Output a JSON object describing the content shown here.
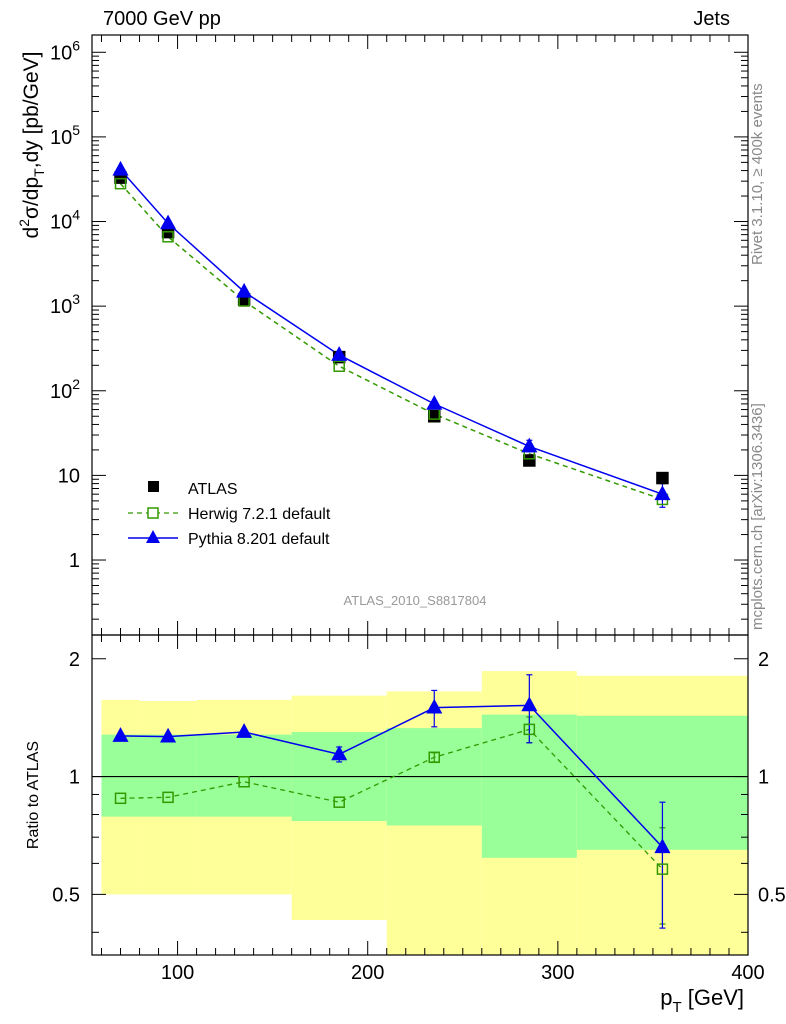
{
  "header": {
    "left": "7000 GeV pp",
    "right": "Jets"
  },
  "side_labels": {
    "rivet": "Rivet 3.1.10, ≥ 400k events",
    "mcplots": "mcplots.cern.ch [arXiv:1306.3436]"
  },
  "analysis_id": "ATLAS_2010_S8817804",
  "colors": {
    "data": "#000000",
    "herwig": "#339900",
    "pythia": "#0000ee",
    "band_outer": "#ffff99",
    "band_inner": "#99ff99"
  },
  "chart_data": [
    {
      "type": "line",
      "panel": "main",
      "ylabel": "d²σ/dp_T,dy [pb/GeV]",
      "yscale": "log",
      "ylim": [
        0.13,
        1600000
      ],
      "xlim": [
        55,
        400
      ],
      "y_tick_labels": [
        "1",
        "10",
        "10²",
        "10³",
        "10⁴",
        "10⁵",
        "10⁶"
      ],
      "legend_position": "lower-left",
      "x": [
        70,
        95,
        135,
        185,
        235,
        285,
        355
      ],
      "series": [
        {
          "name": "ATLAS",
          "values": [
            33000,
            7500,
            1200,
            250,
            50,
            15,
            9.3
          ]
        },
        {
          "name": "Herwig 7.2.1 default",
          "values": [
            28000,
            6600,
            1150,
            195,
            53,
            18,
            5.2
          ]
        },
        {
          "name": "Pythia 8.201 default",
          "values": [
            41000,
            9500,
            1480,
            265,
            70,
            22,
            6.0
          ],
          "yerr_low": [
            0,
            0,
            0,
            0,
            0,
            3,
            1.8
          ],
          "yerr_high": [
            0,
            0,
            0,
            0,
            0,
            4,
            2
          ]
        }
      ]
    },
    {
      "type": "line",
      "panel": "ratio",
      "xlabel": "p_T [GeV]",
      "ylabel": "Ratio to ATLAS",
      "yscale": "log",
      "ylim": [
        0.35,
        2.3
      ],
      "xlim": [
        55,
        400
      ],
      "x_tick_labels": [
        "100",
        "200",
        "300",
        "400"
      ],
      "y_tick_labels": [
        "0.5",
        "1",
        "2"
      ],
      "x": [
        70,
        95,
        135,
        185,
        235,
        285,
        355
      ],
      "bands": {
        "bin_edges": [
          60,
          80,
          110,
          160,
          210,
          260,
          310,
          400
        ],
        "outer_low": [
          0.5,
          0.5,
          0.5,
          0.43,
          0.35,
          0.35,
          0.35
        ],
        "outer_high": [
          1.57,
          1.56,
          1.57,
          1.61,
          1.65,
          1.86,
          1.81
        ],
        "inner_low": [
          0.79,
          0.79,
          0.79,
          0.77,
          0.75,
          0.62,
          0.65
        ],
        "inner_high": [
          1.28,
          1.28,
          1.28,
          1.3,
          1.33,
          1.44,
          1.43
        ]
      },
      "series": [
        {
          "name": "Herwig 7.2.1 default",
          "values": [
            0.88,
            0.885,
            0.97,
            0.86,
            1.12,
            1.32,
            0.58
          ],
          "yerr_low": [
            0,
            0,
            0,
            0,
            0.03,
            0.1,
            0.16
          ],
          "yerr_high": [
            0,
            0,
            0,
            0,
            0.03,
            0.1,
            0.16
          ]
        },
        {
          "name": "Pythia 8.201 default",
          "values": [
            1.27,
            1.265,
            1.3,
            1.14,
            1.5,
            1.52,
            0.66
          ],
          "yerr_low": [
            0,
            0,
            0,
            0.05,
            0.16,
            0.3,
            0.25
          ],
          "yerr_high": [
            0,
            0,
            0,
            0.05,
            0.16,
            0.3,
            0.2
          ]
        }
      ],
      "reference_line": 1
    }
  ]
}
